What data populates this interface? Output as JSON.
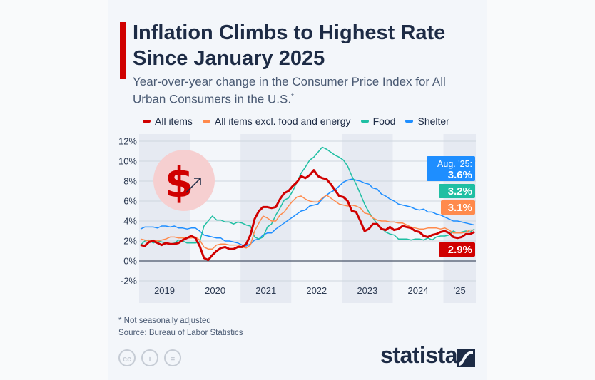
{
  "header": {
    "title": "Inflation Climbs to Highest Rate Since January 2025",
    "subtitle": "Year-over-year change in the Consumer Price Index for All Urban Consumers in the U.S.",
    "subtitle_mark": "*"
  },
  "footer": {
    "note": "* Not seasonally adjusted",
    "source": "Source: Bureau of Labor Statistics",
    "license_icons": [
      "cc-icon",
      "attribution-icon",
      "no-derivatives-icon"
    ],
    "license_labels": [
      "cc",
      "i",
      "="
    ],
    "brand": "statista"
  },
  "colors": {
    "all_items": "#d00000",
    "core": "#ff8a4c",
    "food": "#1fbfa3",
    "shelter": "#1e8eff",
    "accent": "#d00000"
  },
  "chart_data": {
    "type": "line",
    "x_start": "Jan 2019",
    "x_end": "Aug 2025",
    "frequency": "monthly",
    "x_tick_labels": [
      "2019",
      "2020",
      "2021",
      "2022",
      "2023",
      "2024",
      "'25"
    ],
    "y_tick_labels": [
      "12%",
      "10%",
      "8%",
      "6%",
      "4%",
      "2%",
      "0%",
      "-2%"
    ],
    "ylim": [
      -2,
      12
    ],
    "grid": true,
    "legend_position": "top",
    "series": [
      {
        "name": "All items",
        "color": "#d00000",
        "end_label": "2.9%",
        "values": [
          1.6,
          1.5,
          1.9,
          2.0,
          1.8,
          1.6,
          1.8,
          1.7,
          1.7,
          1.8,
          2.1,
          2.3,
          2.5,
          2.3,
          1.5,
          0.3,
          0.1,
          0.6,
          1.0,
          1.3,
          1.4,
          1.2,
          1.2,
          1.4,
          1.4,
          1.7,
          2.6,
          4.2,
          5.0,
          5.4,
          5.4,
          5.3,
          5.4,
          6.2,
          6.8,
          7.0,
          7.5,
          7.9,
          8.5,
          8.3,
          8.6,
          9.1,
          8.5,
          8.3,
          8.2,
          7.7,
          7.1,
          6.5,
          6.4,
          6.0,
          5.0,
          4.9,
          4.0,
          3.0,
          3.2,
          3.7,
          3.7,
          3.2,
          3.1,
          3.4,
          3.1,
          3.2,
          3.5,
          3.4,
          3.3,
          3.0,
          2.9,
          2.5,
          2.4,
          2.6,
          2.7,
          2.9,
          3.0,
          2.8,
          2.4,
          2.3,
          2.4,
          2.7,
          2.7,
          2.9
        ]
      },
      {
        "name": "All items excl. food and energy",
        "color": "#ff8a4c",
        "end_label": "3.1%",
        "values": [
          2.2,
          2.1,
          2.0,
          2.1,
          2.0,
          2.1,
          2.2,
          2.4,
          2.4,
          2.3,
          2.3,
          2.3,
          2.3,
          2.4,
          2.1,
          1.4,
          1.2,
          1.2,
          1.6,
          1.7,
          1.7,
          1.6,
          1.6,
          1.6,
          1.4,
          1.3,
          1.6,
          3.0,
          3.8,
          4.5,
          4.3,
          4.0,
          4.0,
          4.6,
          4.9,
          5.5,
          6.0,
          6.4,
          6.5,
          6.2,
          6.0,
          5.9,
          5.9,
          6.3,
          6.6,
          6.3,
          6.0,
          5.7,
          5.6,
          5.5,
          5.6,
          5.5,
          5.3,
          4.8,
          4.7,
          4.3,
          4.1,
          4.0,
          4.0,
          3.9,
          3.9,
          3.8,
          3.8,
          3.6,
          3.4,
          3.3,
          3.2,
          3.2,
          3.3,
          3.3,
          3.3,
          3.2,
          3.3,
          3.1,
          2.8,
          2.8,
          2.8,
          2.9,
          3.1,
          3.1
        ]
      },
      {
        "name": "Food",
        "color": "#1fbfa3",
        "end_label": "3.2%",
        "values": [
          1.6,
          2.0,
          2.1,
          1.8,
          2.0,
          1.9,
          1.8,
          1.7,
          1.8,
          2.1,
          2.0,
          1.8,
          1.8,
          1.8,
          1.9,
          3.5,
          4.0,
          4.5,
          4.1,
          4.1,
          3.9,
          3.9,
          3.7,
          3.9,
          3.8,
          3.6,
          3.5,
          2.4,
          2.2,
          2.4,
          3.4,
          3.7,
          4.6,
          5.3,
          6.1,
          6.3,
          7.0,
          7.9,
          8.8,
          9.4,
          10.1,
          10.4,
          10.9,
          11.4,
          11.2,
          10.9,
          10.6,
          10.4,
          10.1,
          9.5,
          8.5,
          7.7,
          6.7,
          5.7,
          4.9,
          4.3,
          3.7,
          3.3,
          2.9,
          2.7,
          2.6,
          2.2,
          2.2,
          2.2,
          2.1,
          2.2,
          2.2,
          2.1,
          2.3,
          2.1,
          2.4,
          2.5,
          2.5,
          2.6,
          3.0,
          2.8,
          2.9,
          3.0,
          2.9,
          3.2
        ]
      },
      {
        "name": "Shelter",
        "color": "#1e8eff",
        "end_label": "3.6%",
        "end_label_prefix": "Aug. '25:",
        "values": [
          3.2,
          3.4,
          3.4,
          3.4,
          3.3,
          3.5,
          3.5,
          3.4,
          3.5,
          3.3,
          3.3,
          3.2,
          3.3,
          3.3,
          3.0,
          2.6,
          2.5,
          2.4,
          2.3,
          2.3,
          2.0,
          2.0,
          1.9,
          1.8,
          1.6,
          1.5,
          1.7,
          2.1,
          2.2,
          2.6,
          2.8,
          2.8,
          3.2,
          3.5,
          3.8,
          4.1,
          4.4,
          4.7,
          5.0,
          5.1,
          5.5,
          5.6,
          5.7,
          6.2,
          6.6,
          6.9,
          7.1,
          7.5,
          7.9,
          8.1,
          8.2,
          8.1,
          8.0,
          7.8,
          7.7,
          7.3,
          7.2,
          6.7,
          6.5,
          6.2,
          6.0,
          5.7,
          5.6,
          5.5,
          5.4,
          5.2,
          5.1,
          5.2,
          4.9,
          4.9,
          4.7,
          4.6,
          4.4,
          4.2,
          4.0,
          4.0,
          3.9,
          3.8,
          3.7,
          3.6
        ]
      }
    ]
  }
}
